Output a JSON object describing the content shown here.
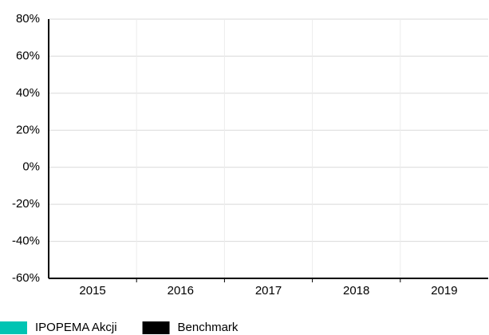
{
  "chart_data": {
    "type": "bar",
    "categories": [
      "2015",
      "2016",
      "2017",
      "2018",
      "2019"
    ],
    "series": [
      {
        "name": "IPOPEMA Akcji",
        "color": "#00c4b3",
        "values": [
          null,
          null,
          null,
          null,
          null
        ]
      },
      {
        "name": "Benchmark",
        "color": "#000000",
        "values": [
          null,
          null,
          null,
          null,
          null
        ]
      }
    ],
    "ylim": [
      -60,
      80
    ],
    "yticks": [
      {
        "value": -60,
        "label": "-60%"
      },
      {
        "value": -40,
        "label": "-40%"
      },
      {
        "value": -20,
        "label": "-20%"
      },
      {
        "value": 0,
        "label": "0%"
      },
      {
        "value": 20,
        "label": "20%"
      },
      {
        "value": 40,
        "label": "40%"
      },
      {
        "value": 60,
        "label": "60%"
      },
      {
        "value": 80,
        "label": "80%"
      }
    ],
    "grid": true,
    "legend": "bottom-left"
  }
}
